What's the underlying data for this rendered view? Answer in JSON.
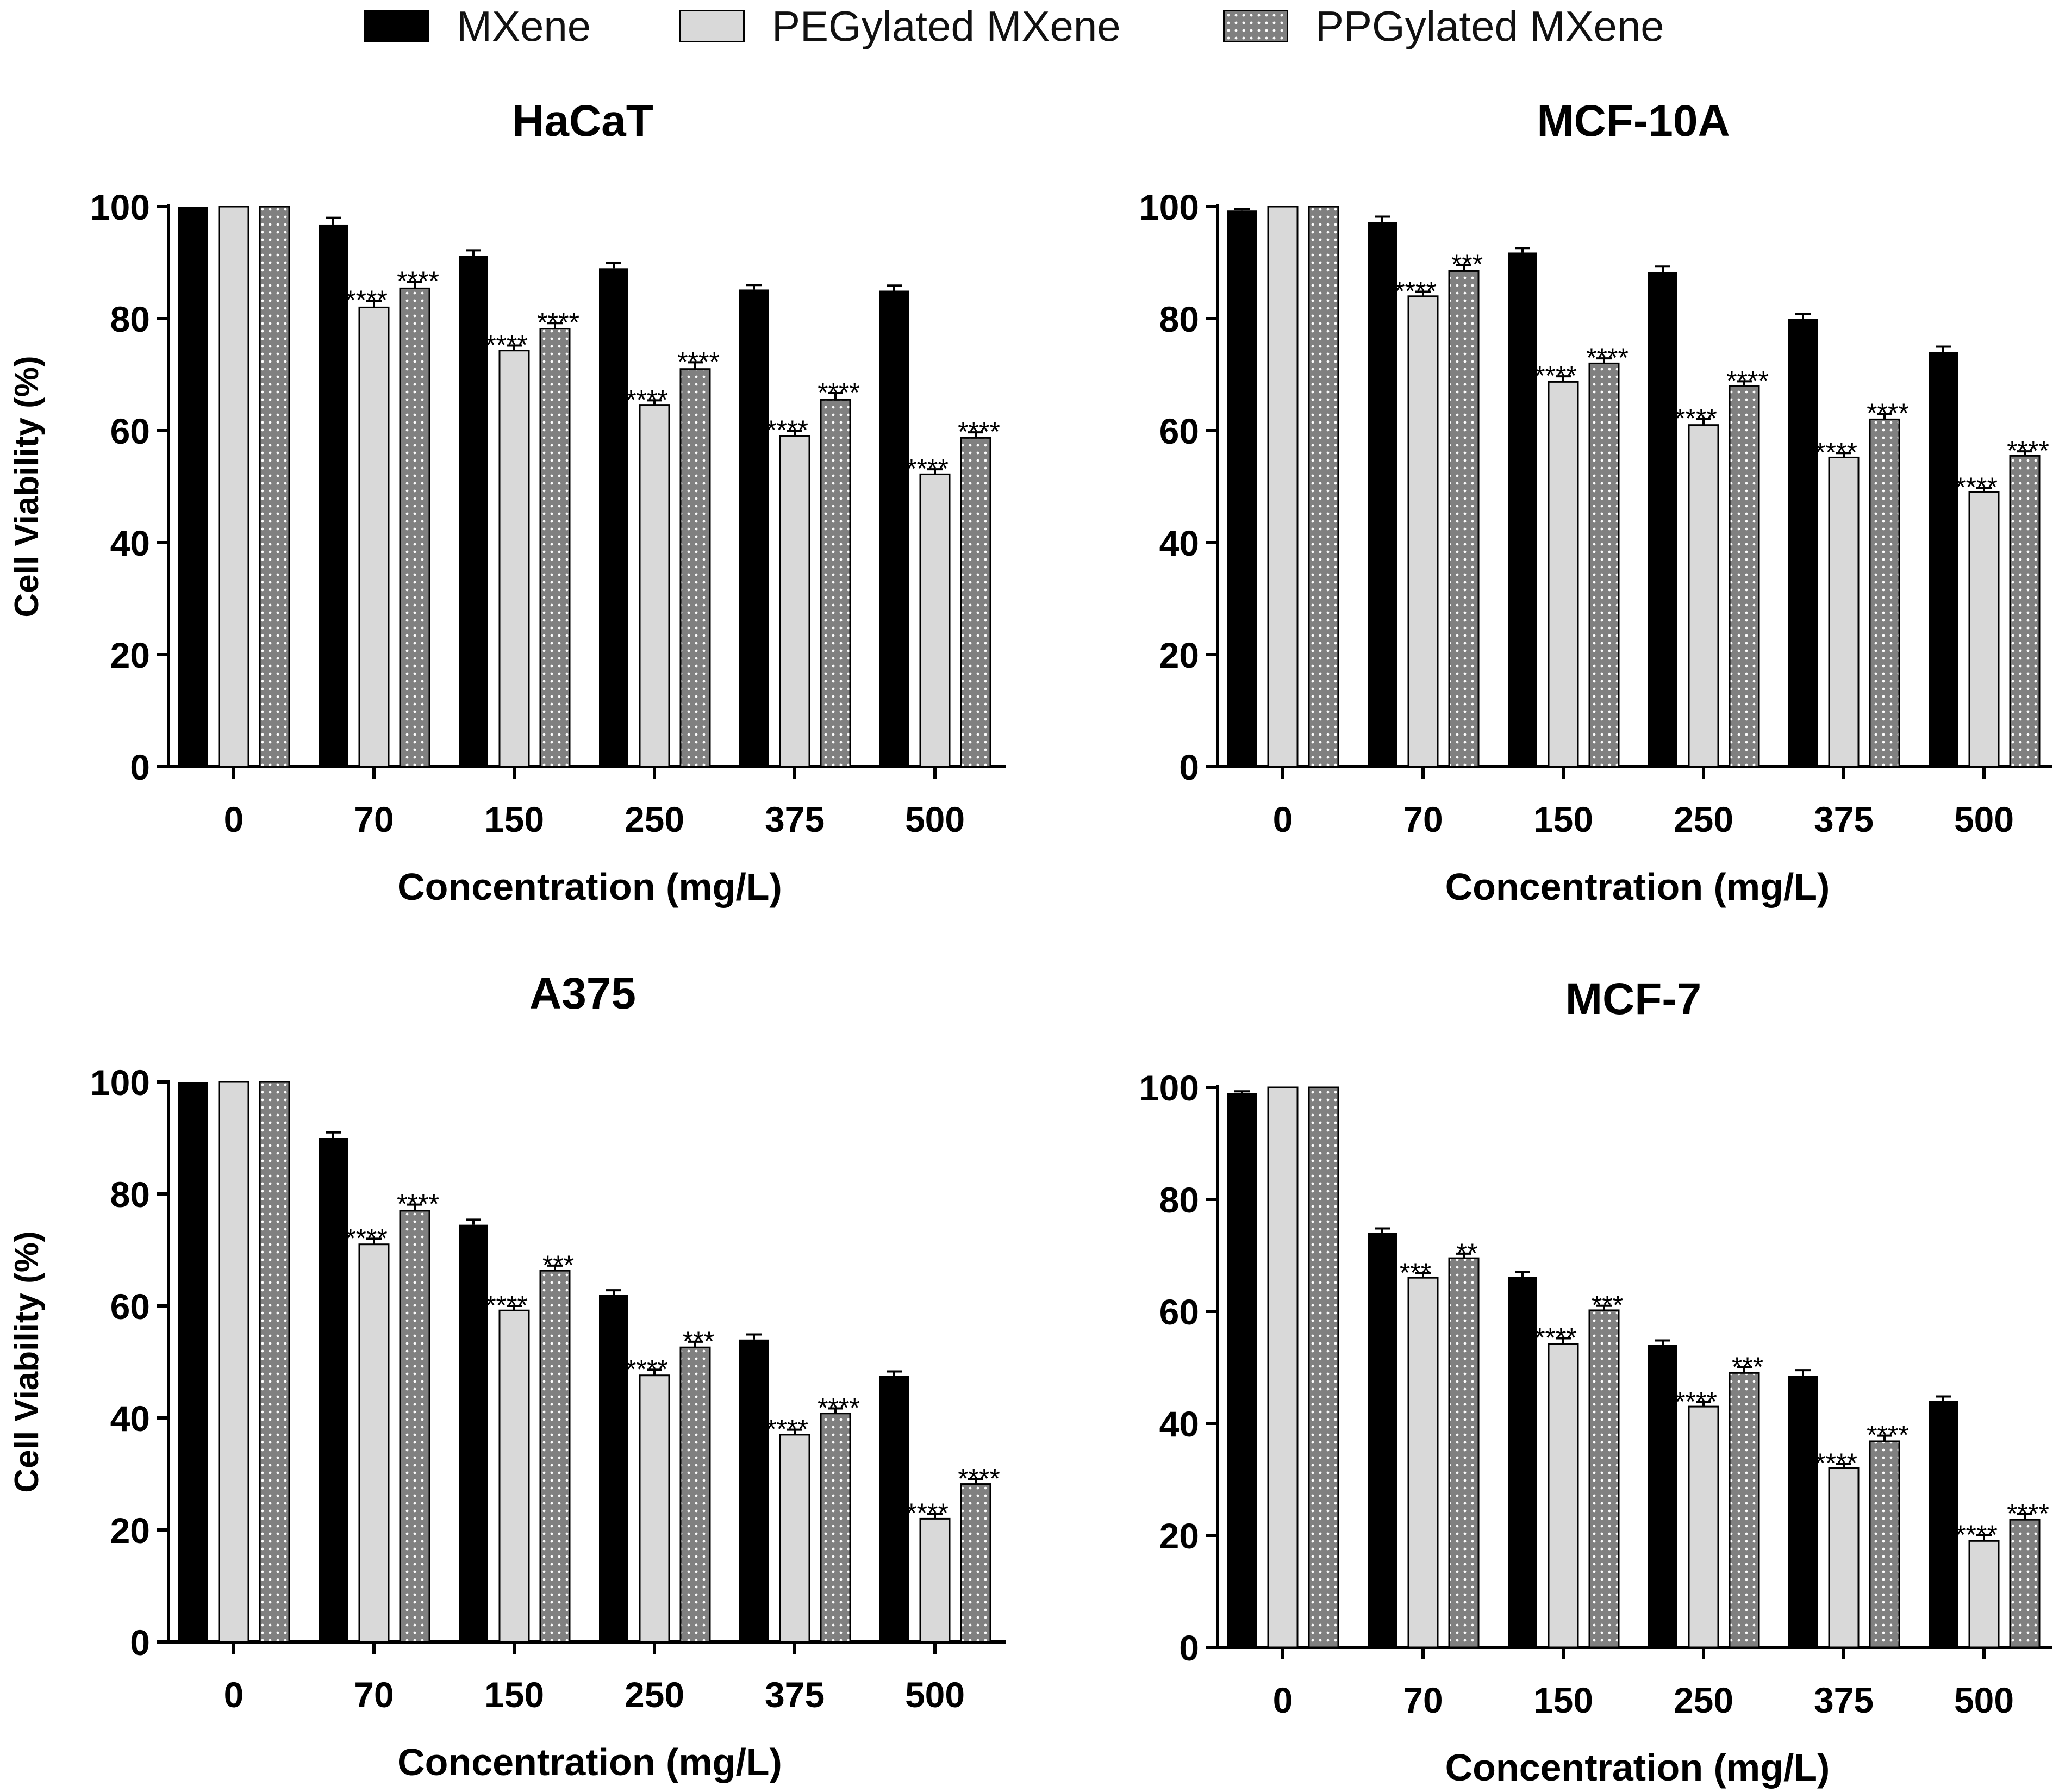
{
  "legend": [
    {
      "label": "MXene",
      "pattern": "solid"
    },
    {
      "label": "PEGylated MXene",
      "pattern": "light"
    },
    {
      "label": "PPGylated MXene",
      "pattern": "dots"
    }
  ],
  "colors": {
    "mxene": "#000000",
    "peg": "#d9d9d9",
    "ppg": "#808080",
    "dot": "#ffffff",
    "axis": "#000000"
  },
  "chart_data": [
    {
      "type": "bar",
      "title": "HaCaT",
      "xlabel": "Concentration (mg/L)",
      "ylabel": "Cell Viability (%)",
      "ylim": [
        0,
        100
      ],
      "yticks": [
        0,
        20,
        40,
        60,
        80,
        100
      ],
      "categories": [
        "0",
        "70",
        "150",
        "250",
        "375",
        "500"
      ],
      "series": [
        {
          "name": "MXene",
          "values": [
            100,
            96.8,
            91.2,
            89.0,
            85.2,
            85.0
          ],
          "errors": [
            0,
            1.2,
            1.0,
            1.0,
            0.8,
            0.9
          ],
          "sig": [
            "",
            "",
            "",
            "",
            "",
            ""
          ]
        },
        {
          "name": "PEGylated MXene",
          "values": [
            100,
            82.0,
            74.3,
            64.6,
            59.0,
            52.2
          ],
          "errors": [
            0,
            1.2,
            0.9,
            0.8,
            1.0,
            0.9
          ],
          "sig": [
            "",
            "****",
            "****",
            "****",
            "****",
            "****"
          ]
        },
        {
          "name": "PPGylated MXene",
          "values": [
            100,
            85.4,
            78.2,
            71.0,
            65.5,
            58.7
          ],
          "errors": [
            0,
            1.2,
            1.0,
            1.2,
            1.2,
            1.0
          ],
          "sig": [
            "",
            "****",
            "****",
            "****",
            "****",
            "****"
          ]
        }
      ]
    },
    {
      "type": "bar",
      "title": "MCF-10A",
      "xlabel": "Concentration (mg/L)",
      "ylabel": "",
      "ylim": [
        0,
        100
      ],
      "yticks": [
        0,
        20,
        40,
        60,
        80,
        100
      ],
      "categories": [
        "0",
        "70",
        "150",
        "250",
        "375",
        "500"
      ],
      "series": [
        {
          "name": "MXene",
          "values": [
            99.3,
            97.2,
            91.8,
            88.3,
            80.0,
            74.0
          ],
          "errors": [
            0.3,
            1.0,
            0.8,
            1.0,
            0.8,
            1.0
          ],
          "sig": [
            "",
            "",
            "",
            "",
            "",
            ""
          ]
        },
        {
          "name": "PEGylated MXene",
          "values": [
            100,
            84.0,
            68.7,
            61.0,
            55.2,
            49.0
          ],
          "errors": [
            0,
            0.8,
            1.0,
            1.1,
            0.8,
            0.8
          ],
          "sig": [
            "",
            "****",
            "****",
            "****",
            "****",
            "****"
          ]
        },
        {
          "name": "PPGylated MXene",
          "values": [
            100,
            88.5,
            72.0,
            68.0,
            62.0,
            55.5
          ],
          "errors": [
            0,
            1.1,
            0.9,
            0.8,
            1.0,
            0.8
          ],
          "sig": [
            "",
            "***",
            "****",
            "****",
            "****",
            "****"
          ]
        }
      ]
    },
    {
      "type": "bar",
      "title": "A375",
      "xlabel": "Concentration (mg/L)",
      "ylabel": "Cell Viability (%)",
      "ylim": [
        0,
        100
      ],
      "yticks": [
        0,
        20,
        40,
        60,
        80,
        100
      ],
      "categories": [
        "0",
        "70",
        "150",
        "250",
        "375",
        "500"
      ],
      "series": [
        {
          "name": "MXene",
          "values": [
            100,
            90.0,
            74.5,
            62.0,
            54.0,
            47.5
          ],
          "errors": [
            0,
            1.0,
            0.9,
            0.8,
            0.9,
            0.8
          ],
          "sig": [
            "",
            "",
            "",
            "",
            "",
            ""
          ]
        },
        {
          "name": "PEGylated MXene",
          "values": [
            100,
            71.0,
            59.2,
            47.6,
            37.0,
            22.0
          ],
          "errors": [
            0,
            1.0,
            0.8,
            1.0,
            0.9,
            0.9
          ],
          "sig": [
            "",
            "****",
            "****",
            "****",
            "****",
            "****"
          ]
        },
        {
          "name": "PPGylated MXene",
          "values": [
            100,
            77.0,
            66.3,
            52.6,
            40.8,
            28.2
          ],
          "errors": [
            0,
            1.1,
            0.9,
            1.0,
            0.9,
            0.9
          ],
          "sig": [
            "",
            "****",
            "***",
            "***",
            "****",
            "****"
          ]
        }
      ]
    },
    {
      "type": "bar",
      "title": "MCF-7",
      "xlabel": "Concentration (mg/L)",
      "ylabel": "",
      "ylim": [
        0,
        100
      ],
      "yticks": [
        0,
        20,
        40,
        60,
        80,
        100
      ],
      "categories": [
        "0",
        "70",
        "150",
        "250",
        "375",
        "500"
      ],
      "series": [
        {
          "name": "MXene",
          "values": [
            99.0,
            74.0,
            66.2,
            54.0,
            48.5,
            44.0
          ],
          "errors": [
            0.3,
            0.8,
            0.8,
            0.8,
            1.0,
            0.8
          ],
          "sig": [
            "",
            "",
            "",
            "",
            "",
            ""
          ]
        },
        {
          "name": "PEGylated MXene",
          "values": [
            100,
            66.0,
            54.2,
            43.0,
            32.0,
            19.0
          ],
          "errors": [
            0,
            0.8,
            1.0,
            0.8,
            0.8,
            1.0
          ],
          "sig": [
            "",
            "***",
            "****",
            "****",
            "****",
            "****"
          ]
        },
        {
          "name": "PPGylated MXene",
          "values": [
            100,
            69.5,
            60.2,
            49.0,
            36.8,
            22.8
          ],
          "errors": [
            0,
            0.8,
            0.8,
            1.0,
            1.0,
            1.0
          ],
          "sig": [
            "",
            "**",
            "***",
            "***",
            "****",
            "****"
          ]
        }
      ]
    }
  ]
}
